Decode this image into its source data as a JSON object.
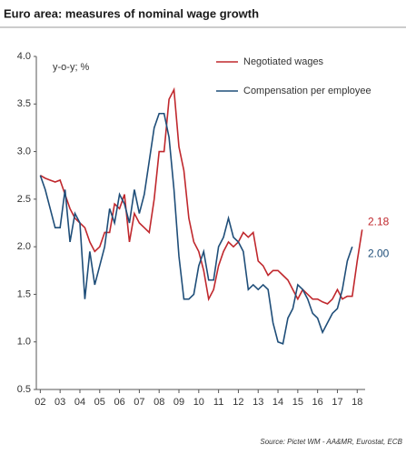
{
  "chart_data": {
    "type": "line",
    "title": "Euro area: measures of nominal wage growth",
    "ylabel": "y-o-y; %",
    "source": "Source: Pictet WM - AA&MR, Eurostat, ECB",
    "x": [
      2,
      2.25,
      2.5,
      2.75,
      3,
      3.25,
      3.5,
      3.75,
      4,
      4.25,
      4.5,
      4.75,
      5,
      5.25,
      5.5,
      5.75,
      6,
      6.25,
      6.5,
      6.75,
      7,
      7.25,
      7.5,
      7.75,
      8,
      8.25,
      8.5,
      8.75,
      9,
      9.25,
      9.5,
      9.75,
      10,
      10.25,
      10.5,
      10.75,
      11,
      11.25,
      11.5,
      11.75,
      12,
      12.25,
      12.5,
      12.75,
      13,
      13.25,
      13.5,
      13.75,
      14,
      14.25,
      14.5,
      14.75,
      15,
      15.25,
      15.5,
      15.75,
      16,
      16.25,
      16.5,
      16.75,
      17,
      17.25,
      17.5,
      17.75,
      18,
      18.25
    ],
    "series": [
      {
        "name": "Negotiated wages",
        "color": "#c0282d",
        "values": [
          2.75,
          2.72,
          2.7,
          2.68,
          2.7,
          2.55,
          2.4,
          2.3,
          2.25,
          2.2,
          2.05,
          1.95,
          2,
          2.15,
          2.15,
          2.45,
          2.4,
          2.55,
          2.05,
          2.35,
          2.25,
          2.2,
          2.15,
          2.5,
          3,
          3,
          3.55,
          3.65,
          3.05,
          2.8,
          2.3,
          2.05,
          1.95,
          1.75,
          1.45,
          1.55,
          1.8,
          1.95,
          2.05,
          2,
          2.05,
          2.15,
          2.1,
          2.15,
          1.85,
          1.8,
          1.7,
          1.75,
          1.75,
          1.7,
          1.65,
          1.55,
          1.45,
          1.55,
          1.5,
          1.45,
          1.45,
          1.42,
          1.4,
          1.45,
          1.55,
          1.45,
          1.48,
          1.48,
          1.85,
          2.18
        ]
      },
      {
        "name": "Compensation per employee",
        "color": "#1f4e79",
        "values": [
          2.75,
          2.6,
          2.4,
          2.2,
          2.2,
          2.6,
          2.05,
          2.35,
          2.25,
          1.45,
          1.95,
          1.6,
          1.8,
          2,
          2.4,
          2.25,
          2.55,
          2.45,
          2.25,
          2.6,
          2.35,
          2.55,
          2.9,
          3.25,
          3.4,
          3.4,
          3.15,
          2.6,
          1.9,
          1.45,
          1.45,
          1.5,
          1.8,
          1.95,
          1.65,
          1.65,
          2,
          2.1,
          2.3,
          2.1,
          2.05,
          1.95,
          1.55,
          1.6,
          1.55,
          1.6,
          1.55,
          1.2,
          1,
          0.98,
          1.25,
          1.35,
          1.6,
          1.55,
          1.45,
          1.3,
          1.25,
          1.1,
          1.2,
          1.3,
          1.35,
          1.55,
          1.85,
          2,
          null,
          null
        ],
        "value_labels": [
          null,
          null,
          null,
          null,
          null,
          null,
          null,
          null,
          null,
          null,
          null,
          null,
          null,
          null,
          null,
          null,
          null,
          null,
          null,
          null,
          null,
          null,
          null,
          null,
          null,
          null,
          null,
          null,
          null,
          null,
          null,
          null,
          null,
          null,
          null,
          null,
          null,
          null,
          null,
          null,
          null,
          null,
          null,
          null,
          null,
          null,
          null,
          null,
          null,
          null,
          null,
          null,
          null,
          null,
          null,
          null,
          null,
          null,
          null,
          null,
          null,
          null,
          null,
          "2.00",
          null,
          null
        ]
      }
    ],
    "end_labels": [
      65,
      63
    ],
    "xlim": [
      1.8,
      18.4
    ],
    "xticks": [
      {
        "value": 2,
        "label": "02"
      },
      {
        "value": 3,
        "label": "03"
      },
      {
        "value": 4,
        "label": "04"
      },
      {
        "value": 5,
        "label": "05"
      },
      {
        "value": 6,
        "label": "06"
      },
      {
        "value": 7,
        "label": "07"
      },
      {
        "value": 8,
        "label": "08"
      },
      {
        "value": 9,
        "label": "09"
      },
      10,
      11,
      12,
      13,
      14,
      15,
      16,
      17,
      18
    ],
    "ylim": [
      0.5,
      4.0
    ],
    "yticks": [
      {
        "value": 0.5,
        "label": "0.5"
      },
      {
        "value": 1,
        "label": "1.0"
      },
      {
        "value": 1.5,
        "label": "1.5"
      },
      {
        "value": 2,
        "label": "2.0"
      },
      {
        "value": 2.5,
        "label": "2.5"
      },
      {
        "value": 3,
        "label": "3.0"
      },
      {
        "value": 3.5,
        "label": "3.5"
      },
      {
        "value": 4,
        "label": "4.0"
      }
    ],
    "grid": false,
    "legend": "top-right"
  }
}
